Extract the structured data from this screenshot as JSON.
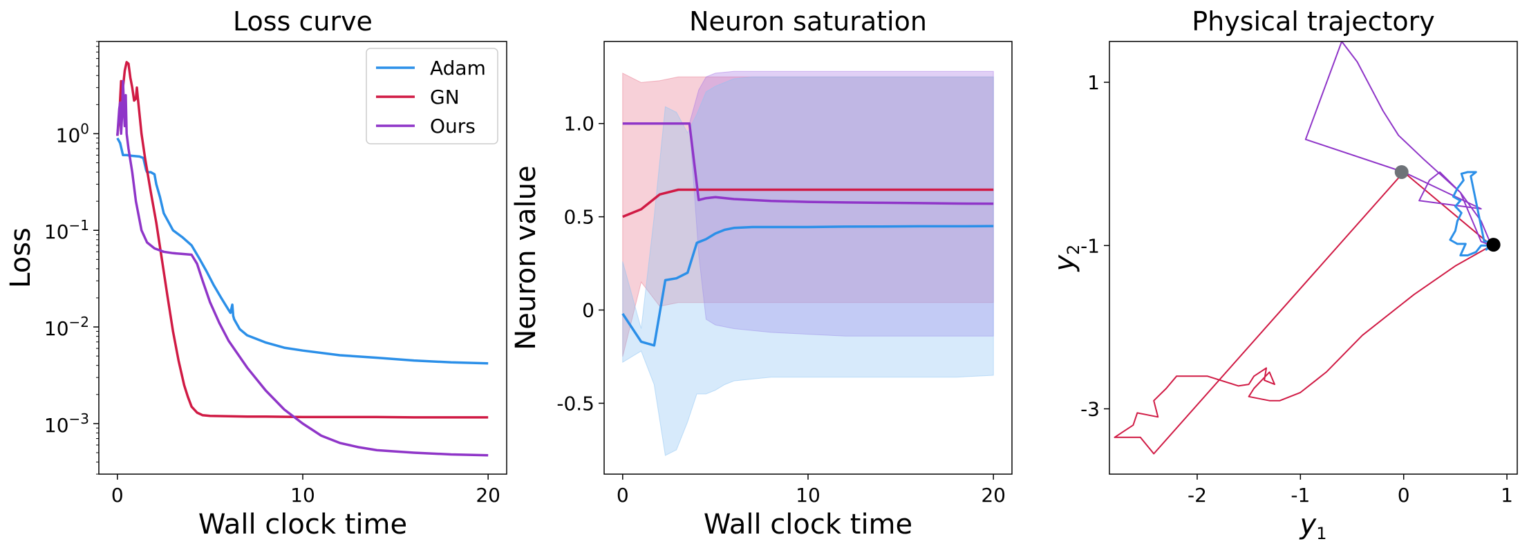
{
  "chart_data": [
    {
      "type": "line",
      "title": "Loss curve",
      "xlabel": "Wall clock time",
      "ylabel": "Loss",
      "yscale": "log",
      "xlim": [
        -1,
        21
      ],
      "ylim": [
        0.0003,
        9
      ],
      "xticks": [
        0,
        10,
        20
      ],
      "xtick_labels": [
        "0",
        "10",
        "20"
      ],
      "yticks": [
        1,
        0.1,
        0.01,
        0.001
      ],
      "ytick_labels": [
        "10^0",
        "10^-1",
        "10^-2",
        "10^-3"
      ],
      "grid": false,
      "legend": "top-right",
      "series": [
        {
          "name": "Adam",
          "color": "#2b8fe8",
          "x": [
            0,
            0.15,
            0.3,
            0.5,
            0.8,
            1.2,
            1.4,
            1.55,
            1.6,
            1.8,
            2.0,
            2.1,
            2.3,
            2.5,
            3.0,
            3.5,
            4.0,
            4.4,
            4.8,
            5.2,
            5.6,
            6.0,
            6.1,
            6.2,
            6.25,
            6.3,
            6.6,
            7,
            8,
            9,
            10,
            12,
            14,
            16,
            18,
            20
          ],
          "y": [
            0.9,
            0.8,
            0.6,
            0.6,
            0.59,
            0.58,
            0.56,
            0.42,
            0.4,
            0.4,
            0.38,
            0.3,
            0.22,
            0.15,
            0.1,
            0.085,
            0.07,
            0.052,
            0.038,
            0.027,
            0.02,
            0.015,
            0.014,
            0.017,
            0.013,
            0.012,
            0.0095,
            0.0082,
            0.0069,
            0.0061,
            0.0057,
            0.0051,
            0.0048,
            0.0045,
            0.0043,
            0.0042
          ]
        },
        {
          "name": "GN",
          "color": "#d01a44",
          "x": [
            0,
            0.1,
            0.2,
            0.3,
            0.4,
            0.5,
            0.6,
            0.7,
            0.8,
            0.9,
            1.0,
            1.05,
            1.1,
            1.3,
            1.5,
            1.8,
            2.1,
            2.4,
            2.7,
            3.0,
            3.3,
            3.6,
            3.8,
            4.0,
            4.3,
            4.6,
            5.0,
            6,
            7,
            8,
            10,
            12,
            14,
            16,
            18,
            20
          ],
          "y": [
            0.95,
            1.5,
            3.5,
            3.0,
            4.5,
            5.5,
            5.3,
            3.8,
            3.0,
            2.2,
            2.3,
            3.0,
            2.4,
            1.0,
            0.55,
            0.25,
            0.12,
            0.05,
            0.021,
            0.009,
            0.0045,
            0.0025,
            0.0019,
            0.0015,
            0.0013,
            0.00122,
            0.0012,
            0.00119,
            0.00118,
            0.00118,
            0.00117,
            0.00117,
            0.00117,
            0.00116,
            0.00116,
            0.00116
          ]
        },
        {
          "name": "Ours",
          "color": "#8f35c8",
          "x": [
            0,
            0.1,
            0.15,
            0.2,
            0.25,
            0.3,
            0.35,
            0.4,
            0.45,
            0.5,
            0.6,
            0.8,
            1.0,
            1.3,
            1.6,
            2.0,
            2.5,
            3.0,
            3.5,
            4.0,
            4.3,
            4.6,
            5.0,
            5.5,
            6.0,
            7,
            8,
            9,
            10,
            11,
            12,
            13,
            14,
            16,
            18,
            20
          ],
          "y": [
            0.95,
            1.8,
            2.1,
            1.0,
            1.5,
            3.5,
            2.0,
            1.2,
            2.5,
            1.0,
            0.7,
            0.4,
            0.2,
            0.1,
            0.075,
            0.065,
            0.06,
            0.058,
            0.057,
            0.056,
            0.045,
            0.03,
            0.018,
            0.011,
            0.0072,
            0.0038,
            0.0022,
            0.0014,
            0.001,
            0.00075,
            0.00063,
            0.00057,
            0.00053,
            0.0005,
            0.00048,
            0.00047
          ]
        }
      ]
    },
    {
      "type": "line",
      "title": "Neuron saturation",
      "xlabel": "Wall clock time",
      "ylabel": "Neuron value",
      "xlim": [
        -1,
        21
      ],
      "ylim": [
        -0.88,
        1.44
      ],
      "xticks": [
        0,
        10,
        20
      ],
      "xtick_labels": [
        "0",
        "10",
        "20"
      ],
      "yticks": [
        1.0,
        0.5,
        0,
        -0.5
      ],
      "ytick_labels": [
        "1.0",
        "0.5",
        "0",
        "-0.5"
      ],
      "grid": false,
      "series": [
        {
          "color": "#d01a44",
          "band_color": "#e8788e",
          "x": [
            0,
            1,
            2,
            3,
            4,
            5,
            6,
            8,
            10,
            12,
            14,
            16,
            18,
            20
          ],
          "y": [
            0.5,
            0.54,
            0.62,
            0.645,
            0.645,
            0.645,
            0.645,
            0.645,
            0.645,
            0.645,
            0.645,
            0.645,
            0.645,
            0.645
          ],
          "upper": [
            1.27,
            1.22,
            1.23,
            1.25,
            1.25,
            1.25,
            1.25,
            1.25,
            1.25,
            1.25,
            1.25,
            1.25,
            1.25,
            1.25
          ],
          "lower": [
            -0.25,
            0.15,
            0.02,
            0.04,
            0.04,
            0.04,
            0.04,
            0.04,
            0.04,
            0.04,
            0.04,
            0.04,
            0.04,
            0.04
          ]
        },
        {
          "color": "#8f35c8",
          "band_color": "#a878e6",
          "x": [
            0,
            1,
            2,
            3,
            3.6,
            4.1,
            4.5,
            5,
            6,
            8,
            10,
            12,
            14,
            16,
            18,
            20
          ],
          "y": [
            1.0,
            1.0,
            1.0,
            1.0,
            1.0,
            0.59,
            0.6,
            0.605,
            0.595,
            0.585,
            0.58,
            0.577,
            0.575,
            0.573,
            0.571,
            0.57
          ],
          "upper": [
            1.0,
            1.0,
            1.0,
            1.0,
            1.0,
            1.18,
            1.25,
            1.27,
            1.28,
            1.28,
            1.28,
            1.28,
            1.28,
            1.28,
            1.28,
            1.28
          ],
          "lower": [
            1.0,
            1.0,
            1.0,
            1.0,
            1.0,
            0.3,
            -0.05,
            -0.08,
            -0.1,
            -0.12,
            -0.13,
            -0.14,
            -0.14,
            -0.14,
            -0.14,
            -0.14
          ]
        },
        {
          "color": "#2b8fe8",
          "band_color": "#8cc3f3",
          "x": [
            0,
            1,
            1.7,
            2.3,
            2.9,
            3.5,
            4,
            4.5,
            5,
            5.5,
            6,
            7,
            8,
            10,
            12,
            14,
            16,
            18,
            20
          ],
          "y": [
            -0.02,
            -0.17,
            -0.19,
            0.16,
            0.17,
            0.2,
            0.36,
            0.38,
            0.41,
            0.43,
            0.44,
            0.445,
            0.445,
            0.445,
            0.447,
            0.448,
            0.449,
            0.449,
            0.45
          ],
          "upper": [
            0.26,
            -0.1,
            0.5,
            1.09,
            1.06,
            0.95,
            1.05,
            1.17,
            1.2,
            1.22,
            1.24,
            1.25,
            1.25,
            1.25,
            1.25,
            1.25,
            1.25,
            1.25,
            1.25
          ],
          "lower": [
            -0.28,
            -0.22,
            -0.4,
            -0.78,
            -0.75,
            -0.6,
            -0.45,
            -0.45,
            -0.43,
            -0.4,
            -0.38,
            -0.37,
            -0.36,
            -0.36,
            -0.36,
            -0.36,
            -0.36,
            -0.36,
            -0.35
          ]
        }
      ]
    },
    {
      "type": "line",
      "title": "Physical trajectory",
      "xlabel": "y",
      "xlabel_sub": "1",
      "ylabel": "y",
      "ylabel_sub": "2",
      "xlim": [
        -2.85,
        1.1
      ],
      "ylim": [
        -3.8,
        1.5
      ],
      "xticks": [
        -2,
        -1,
        0,
        1
      ],
      "xtick_labels": [
        "-2",
        "-1",
        "0",
        "1"
      ],
      "yticks": [
        1,
        -1,
        -3
      ],
      "ytick_labels": [
        "1",
        "-1",
        "-3"
      ],
      "grid": false,
      "series": [
        {
          "color": "#d01a44",
          "x": [
            0.85,
            0.5,
            0.1,
            -0.4,
            -0.75,
            -1.0,
            -1.2,
            -1.3,
            -1.5,
            -1.45,
            -1.3,
            -1.25,
            -1.35,
            -1.33,
            -1.45,
            -1.5,
            -1.6,
            -1.9,
            -2.2,
            -2.3,
            -2.42,
            -2.38,
            -2.58,
            -2.62,
            -2.8,
            -2.55,
            -2.42,
            0.0,
            0.85
          ],
          "x_note": "",
          "y": [
            -1.0,
            -1.25,
            -1.6,
            -2.1,
            -2.55,
            -2.8,
            -2.9,
            -2.9,
            -2.85,
            -2.75,
            -2.55,
            -2.7,
            -2.65,
            -2.5,
            -2.6,
            -2.7,
            -2.72,
            -2.6,
            -2.6,
            -2.75,
            -2.9,
            -3.1,
            -3.05,
            -3.2,
            -3.35,
            -3.35,
            -3.55,
            -0.1,
            -1.0
          ]
        },
        {
          "color": "#8f35c8",
          "x": [
            0.85,
            0.75,
            0.55,
            0.35,
            0.25,
            0.15,
            0.75,
            0.0,
            -0.95,
            -0.6,
            -0.45,
            -0.2,
            -0.05,
            0.2,
            0.55,
            0.75,
            0.85
          ],
          "y": [
            -1.0,
            -0.7,
            -0.35,
            -0.1,
            -0.2,
            -0.45,
            -0.55,
            -0.1,
            0.3,
            1.5,
            1.25,
            0.65,
            0.35,
            0.05,
            -0.35,
            -0.95,
            -1.0
          ]
        },
        {
          "color": "#2b8fe8",
          "x": [
            0.85,
            0.75,
            0.7,
            0.62,
            0.55,
            0.6,
            0.52,
            0.45,
            0.5,
            0.52,
            0.56,
            0.5,
            0.55,
            0.48,
            0.52,
            0.58,
            0.56,
            0.62,
            0.7,
            0.65,
            0.78,
            0.85,
            0.8,
            0.85
          ],
          "y": [
            -1.0,
            -1.0,
            -1.08,
            -1.12,
            -1.12,
            -0.98,
            -0.98,
            -0.93,
            -0.82,
            -0.7,
            -0.6,
            -0.52,
            -0.45,
            -0.4,
            -0.3,
            -0.2,
            -0.12,
            -0.1,
            -0.1,
            -0.15,
            -0.95,
            -0.95,
            -1.05,
            -1.0
          ]
        }
      ],
      "markers": [
        {
          "x": -0.02,
          "y": -0.1,
          "color": "#6e7378"
        },
        {
          "x": 0.87,
          "y": -0.99,
          "color": "#000000"
        }
      ]
    }
  ]
}
